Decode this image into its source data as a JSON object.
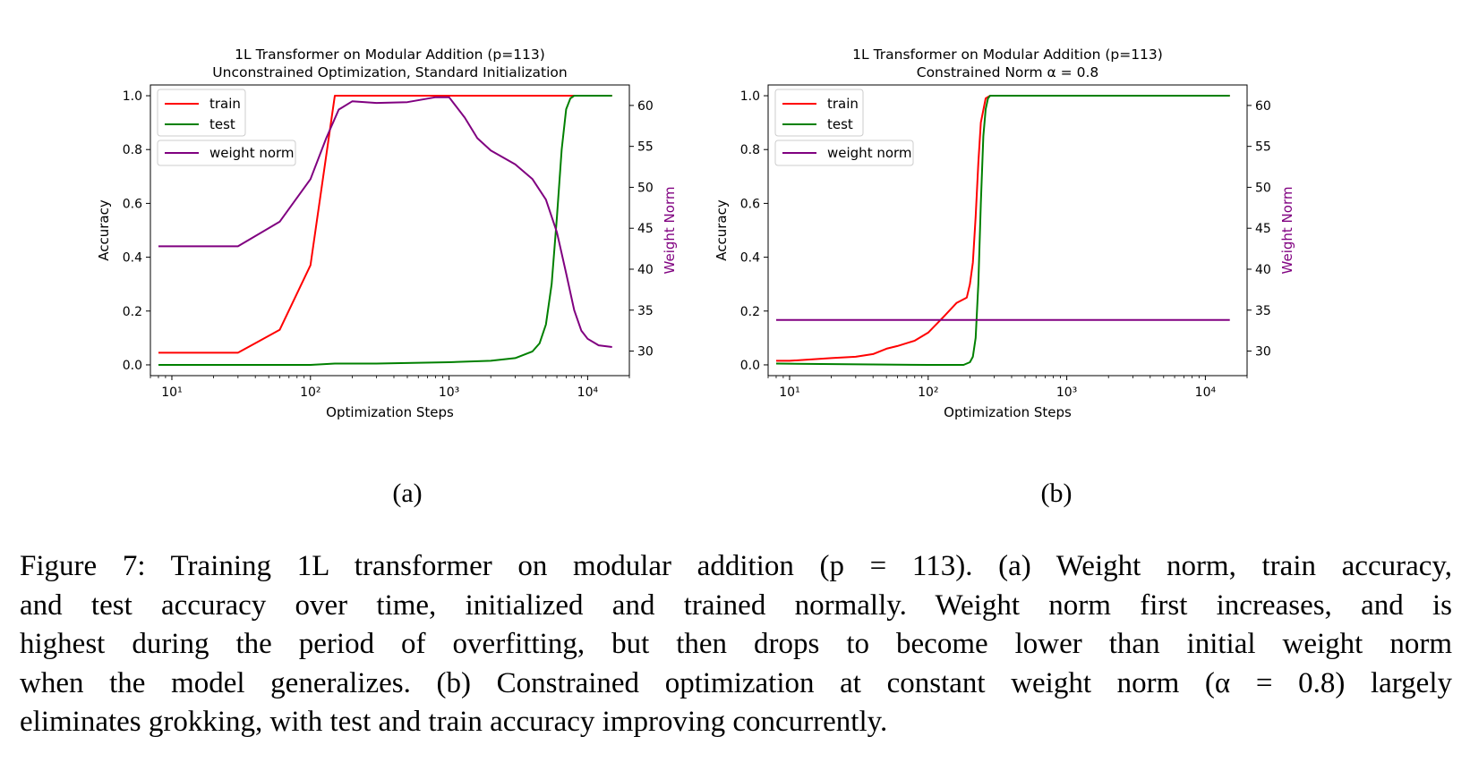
{
  "colors": {
    "train": "#ff0000",
    "test": "#008000",
    "weight_norm": "#800080",
    "axis": "#000000"
  },
  "chart_data": [
    {
      "type": "line",
      "title": "1L Transformer on Modular Addition (p=113)",
      "subtitle": "Unconstrained Optimization, Standard Initialization",
      "xlabel": "Optimization Steps",
      "ylabel": "Accuracy",
      "ylabel_right": "Weight Norm",
      "xscale": "log",
      "xlim": [
        7,
        20000
      ],
      "ylim": [
        -0.04,
        1.04
      ],
      "ylim_right": [
        27,
        62.5
      ],
      "xticks": [
        "10¹",
        "10²",
        "10³",
        "10⁴"
      ],
      "yticks": [
        "0.0",
        "0.2",
        "0.4",
        "0.6",
        "0.8",
        "1.0"
      ],
      "yticks_right": [
        "30",
        "35",
        "40",
        "45",
        "50",
        "55",
        "60"
      ],
      "legend": [
        "train",
        "test",
        "weight norm"
      ],
      "legend_placement": "upper-left",
      "panel_label": "(a)",
      "series": [
        {
          "name": "train",
          "axis": "left",
          "x": [
            8,
            30,
            60,
            100,
            150,
            1000,
            7000,
            15000
          ],
          "y": [
            0.045,
            0.045,
            0.13,
            0.37,
            1.0,
            1.0,
            1.0,
            1.0
          ]
        },
        {
          "name": "test",
          "axis": "left",
          "x": [
            8,
            100,
            150,
            300,
            1000,
            2000,
            3000,
            4000,
            4500,
            5000,
            5500,
            6000,
            6500,
            7000,
            7500,
            8000,
            9000,
            15000
          ],
          "y": [
            0.0,
            0.0,
            0.005,
            0.005,
            0.01,
            0.015,
            0.025,
            0.05,
            0.08,
            0.15,
            0.3,
            0.55,
            0.8,
            0.95,
            0.99,
            1.0,
            1.0,
            1.0
          ]
        },
        {
          "name": "weight norm",
          "axis": "right",
          "x": [
            8,
            30,
            60,
            100,
            130,
            160,
            200,
            300,
            500,
            800,
            1000,
            1300,
            1600,
            2000,
            3000,
            4000,
            5000,
            6000,
            7000,
            8000,
            9000,
            10000,
            12000,
            15000
          ],
          "y": [
            42.8,
            42.8,
            45.8,
            51.0,
            56.0,
            59.5,
            60.5,
            60.3,
            60.4,
            61.0,
            61.0,
            58.5,
            56.0,
            54.5,
            52.8,
            51.0,
            48.5,
            44.5,
            39.5,
            35.0,
            32.5,
            31.5,
            30.7,
            30.5
          ]
        }
      ]
    },
    {
      "type": "line",
      "title": "1L Transformer on Modular Addition (p=113)",
      "subtitle": "Constrained Norm α = 0.8",
      "xlabel": "Optimization Steps",
      "ylabel": "Accuracy",
      "ylabel_right": "Weight Norm",
      "xscale": "log",
      "xlim": [
        7,
        20000
      ],
      "ylim": [
        -0.04,
        1.04
      ],
      "ylim_right": [
        27,
        62.5
      ],
      "xticks": [
        "10¹",
        "10²",
        "10³",
        "10⁴"
      ],
      "yticks": [
        "0.0",
        "0.2",
        "0.4",
        "0.6",
        "0.8",
        "1.0"
      ],
      "yticks_right": [
        "30",
        "35",
        "40",
        "45",
        "50",
        "55",
        "60"
      ],
      "legend": [
        "train",
        "test",
        "weight norm"
      ],
      "legend_placement": "upper-left",
      "panel_label": "(b)",
      "series": [
        {
          "name": "train",
          "axis": "left",
          "x": [
            8,
            10,
            20,
            30,
            40,
            50,
            60,
            80,
            100,
            130,
            160,
            190,
            200,
            210,
            220,
            230,
            240,
            260,
            280,
            300,
            1000,
            15000
          ],
          "y": [
            0.015,
            0.015,
            0.025,
            0.03,
            0.04,
            0.06,
            0.07,
            0.09,
            0.12,
            0.18,
            0.23,
            0.25,
            0.3,
            0.38,
            0.55,
            0.75,
            0.9,
            0.99,
            1.0,
            1.0,
            1.0,
            1.0
          ]
        },
        {
          "name": "test",
          "axis": "left",
          "x": [
            8,
            100,
            180,
            200,
            210,
            220,
            230,
            240,
            250,
            260,
            270,
            280,
            300,
            1000,
            15000
          ],
          "y": [
            0.005,
            0.0,
            0.0,
            0.01,
            0.03,
            0.1,
            0.3,
            0.6,
            0.85,
            0.95,
            0.99,
            1.0,
            1.0,
            1.0,
            1.0
          ]
        },
        {
          "name": "weight norm",
          "axis": "right",
          "x": [
            8,
            15000
          ],
          "y": [
            33.8,
            33.8
          ]
        }
      ]
    }
  ],
  "caption": [
    "Figure 7: Training 1L transformer on modular addition (p = 113). (a) Weight norm, train accuracy,",
    "and test accuracy over time, initialized and trained normally. Weight norm first increases, and is",
    "highest during the period of overfitting, but then drops to become lower than initial weight norm",
    "when the model generalizes. (b) Constrained optimization at constant weight norm (α = 0.8) largely",
    "eliminates grokking, with test and train accuracy improving concurrently."
  ]
}
